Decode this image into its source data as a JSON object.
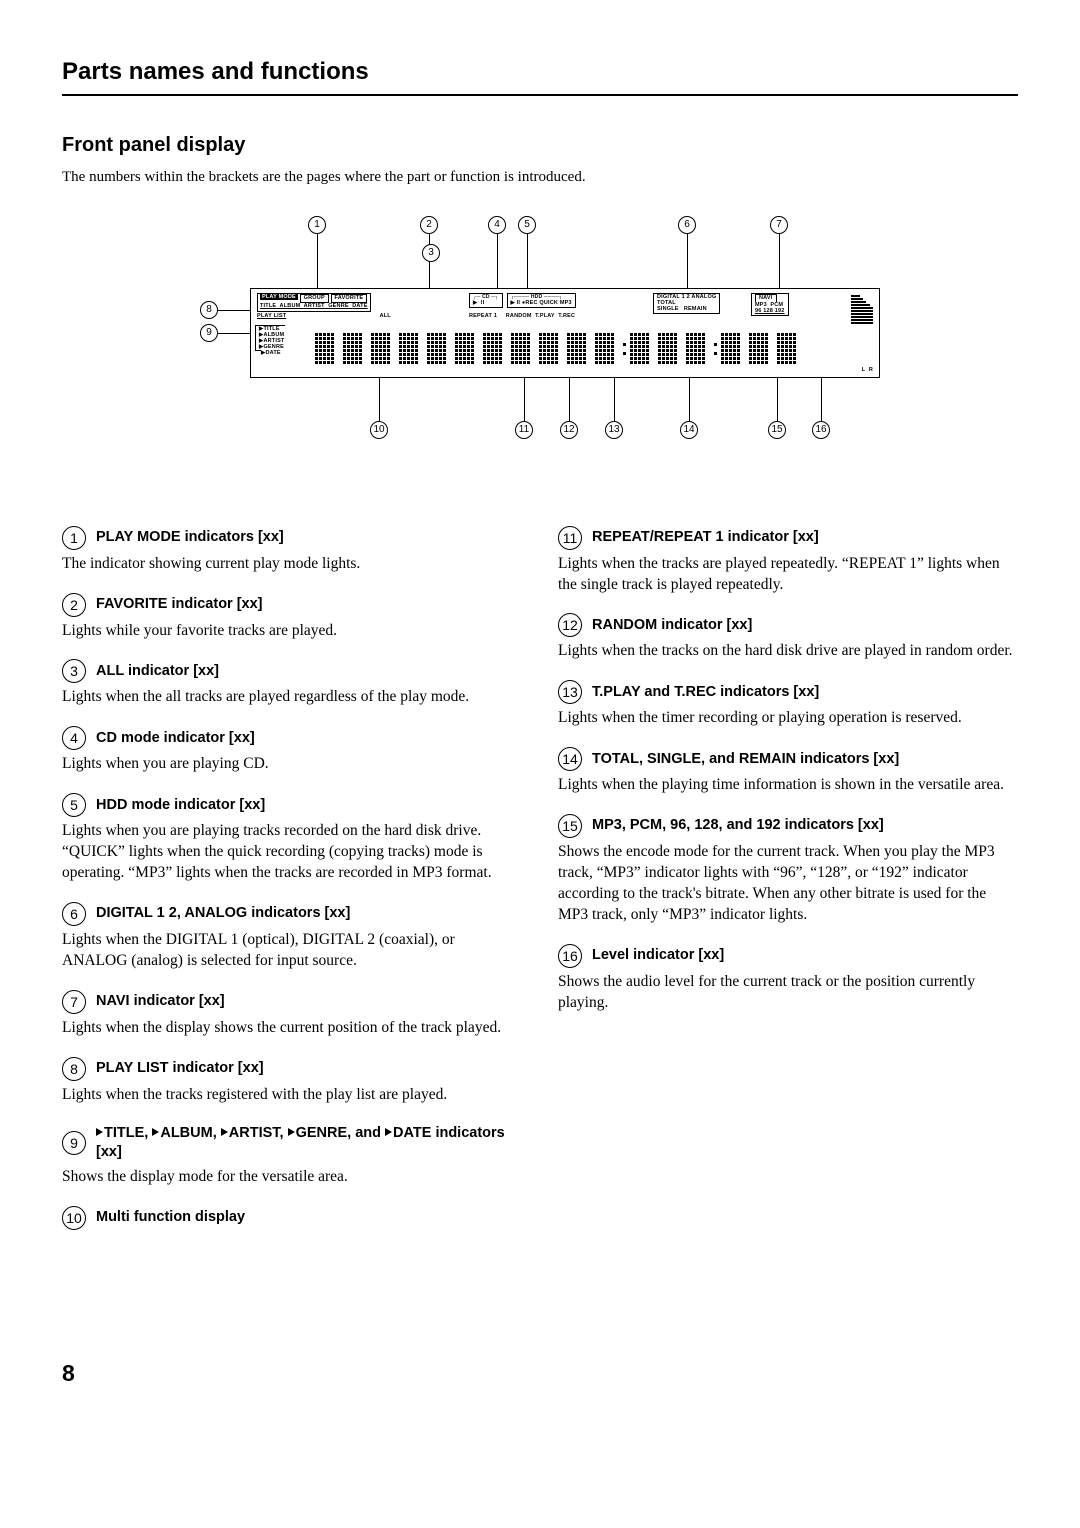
{
  "chapter_title": "Parts names and functions",
  "section_title": "Front panel display",
  "intro": "The numbers within the brackets are the pages where the part or function is introduced.",
  "page_number": "8",
  "panel_labels": {
    "play_mode": "PLAY MODE",
    "group": "GROUP",
    "favorite": "FAVORITE",
    "title": "TITLE",
    "album": "ALBUM",
    "artist": "ARTIST",
    "genre": "GENRE",
    "date": "DATE",
    "play_list": "PLAY LIST",
    "all": "ALL",
    "cd": "CD",
    "hdd": "HDD",
    "rec": "REC",
    "quick": "QUICK",
    "mp3": "MP3",
    "repeat1": "REPEAT 1",
    "random": "RANDOM",
    "tplay": "T.PLAY",
    "trec": "T.REC",
    "digital": "DIGITAL 1 2",
    "analog": "ANALOG",
    "total": "TOTAL",
    "single": "SINGLE",
    "remain": "REMAIN",
    "navi": "NAVI",
    "mp3b": "MP3",
    "pcm": "PCM",
    "r96": "96",
    "r128": "128",
    "r192": "192",
    "side_title": "TITLE",
    "side_album": "ALBUM",
    "side_artist": "ARTIST",
    "side_genre": "GENRE",
    "side_date": "DATE",
    "L": "L",
    "R": "R"
  },
  "left": [
    {
      "n": "1",
      "title": "PLAY MODE indicators [xx]",
      "body": "The indicator showing current play mode lights."
    },
    {
      "n": "2",
      "title": "FAVORITE indicator [xx]",
      "body": "Lights while your favorite tracks are played."
    },
    {
      "n": "3",
      "title": "ALL indicator [xx]",
      "body": "Lights when the all tracks are played regardless of the play mode."
    },
    {
      "n": "4",
      "title": "CD mode indicator [xx]",
      "body": "Lights when you are playing CD."
    },
    {
      "n": "5",
      "title": "HDD mode indicator [xx]",
      "body": "Lights when you are playing tracks recorded on the hard disk drive. “QUICK” lights when the quick recording (copying tracks) mode is operating. “MP3” lights when the tracks are recorded in MP3 format."
    },
    {
      "n": "6",
      "title": "DIGITAL 1 2, ANALOG indicators [xx]",
      "body": "Lights when the DIGITAL 1 (optical), DIGITAL 2 (coaxial), or ANALOG (analog) is selected for input source."
    },
    {
      "n": "7",
      "title": "NAVI indicator [xx]",
      "body": "Lights when the display shows the current position of the track played."
    },
    {
      "n": "8",
      "title": "PLAY LIST indicator [xx]",
      "body": "Lights when the tracks registered with the play list are played."
    },
    {
      "n": "9",
      "title_html": "▶TITLE, ▶ALBUM, ▶ARTIST, ▶GENRE, and ▶DATE indicators [xx]",
      "body": "Shows the display mode for the versatile area."
    },
    {
      "n": "10",
      "title": "Multi function display",
      "body": ""
    }
  ],
  "right": [
    {
      "n": "11",
      "title": "REPEAT/REPEAT 1 indicator [xx]",
      "body": "Lights when the tracks are played repeatedly. “REPEAT 1” lights when the single track is played repeatedly."
    },
    {
      "n": "12",
      "title": "RANDOM indicator [xx]",
      "body": "Lights when the tracks on the hard disk drive are played in random order."
    },
    {
      "n": "13",
      "title": "T.PLAY and T.REC indicators [xx]",
      "body": "Lights when the timer recording or playing operation is reserved."
    },
    {
      "n": "14",
      "title": "TOTAL, SINGLE, and REMAIN indicators [xx]",
      "body": "Lights when the playing time information is shown in the versatile area."
    },
    {
      "n": "15",
      "title": "MP3, PCM, 96, 128, and 192 indicators [xx]",
      "body": "Shows the encode mode for the current track. When you play the MP3 track, “MP3” indicator lights with “96”, “128”, or “192” indicator according to the track's bitrate. When any other bitrate is used for the MP3 track, only “MP3” indicator lights."
    },
    {
      "n": "16",
      "title": "Level indicator [xx]",
      "body": "Shows the audio level for the current track or the position currently playing."
    }
  ]
}
